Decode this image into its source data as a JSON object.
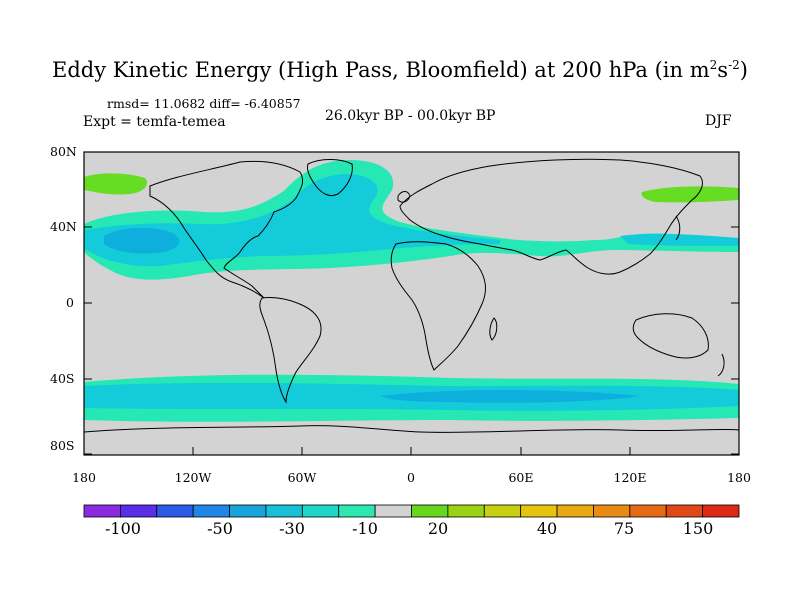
{
  "title": {
    "main": "Eddy Kinetic Energy (High Pass, Bloomfield) at 200 hPa (in m",
    "sup1": "2",
    "mid": "s",
    "sup2": "-2",
    "end": ")"
  },
  "stats": "rmsd= 11.0682 diff= -6.40857",
  "experiment": "Expt = temfa-temea",
  "period": "26.0kyr BP - 00.0kyr BP",
  "season": "DJF",
  "map": {
    "lat_ticks": [
      "80N",
      "40N",
      "0",
      "40S",
      "80S"
    ],
    "lon_ticks": [
      "180",
      "120W",
      "60W",
      "0",
      "60E",
      "120E",
      "180"
    ],
    "colors": {
      "background": "#d3d3d3",
      "band_outer": "#26e8b4",
      "band_core": "#14cbd9",
      "band_peak": "#0eafdc",
      "positive": "#66dd22"
    }
  },
  "colorbar": {
    "colors": [
      "#8a2be2",
      "#5a2ee6",
      "#2b5ae8",
      "#1f86e6",
      "#1aa4dc",
      "#19c0d6",
      "#1fd6c8",
      "#2ee8b4",
      "#d3d3d3",
      "#66d61e",
      "#9ad214",
      "#c8d012",
      "#e4c40c",
      "#eaa812",
      "#e88a14",
      "#e46a16",
      "#e04818",
      "#dc2a16"
    ],
    "labels": [
      "-100",
      "-50",
      "-30",
      "-10",
      "20",
      "40",
      "75",
      "150"
    ]
  }
}
